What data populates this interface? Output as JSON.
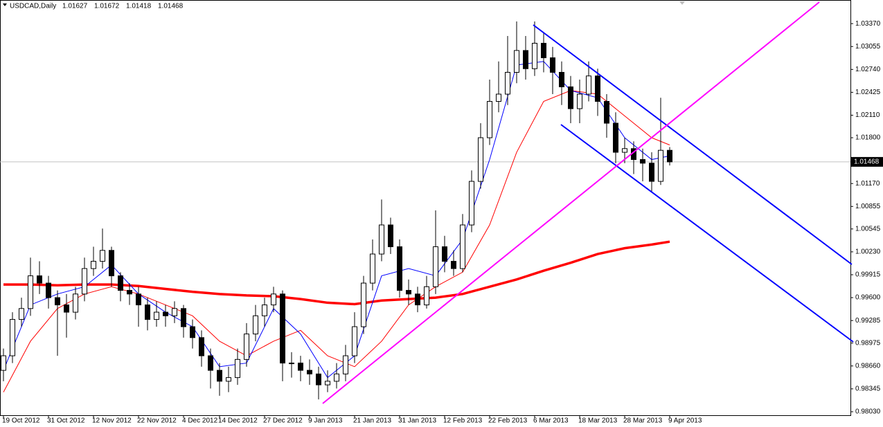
{
  "chart_data": {
    "type": "candlestick",
    "symbol": "USDCAD,Daily",
    "categories": [
      "19 Oct 2012",
      null,
      null,
      null,
      null,
      "31 Oct 2012",
      null,
      null,
      null,
      null,
      "12 Nov 2012",
      null,
      null,
      null,
      null,
      "22 Nov 2012",
      null,
      null,
      null,
      null,
      "4 Dec 2012",
      null,
      null,
      null,
      "14 Dec 2012",
      null,
      null,
      null,
      null,
      "27 Dec 2012",
      null,
      null,
      null,
      null,
      "9 Jan 2013",
      null,
      null,
      null,
      null,
      "21 Jan 2013",
      null,
      null,
      null,
      null,
      "31 Jan 2013",
      null,
      null,
      null,
      null,
      "12 Feb 2013",
      null,
      null,
      null,
      null,
      "22 Feb 2013",
      null,
      null,
      null,
      null,
      "6 Mar 2013",
      null,
      null,
      null,
      null,
      "18 Mar 2013",
      null,
      null,
      null,
      null,
      "28 Mar 2013",
      null,
      null,
      null,
      null,
      "9 Apr 2013"
    ],
    "candles": {
      "up_color": "#ffffff",
      "down_color": "#000000",
      "edge_color": "#000000",
      "open": [
        0.986,
        0.988,
        0.993,
        0.9945,
        0.999,
        0.998,
        0.996,
        0.995,
        0.994,
        0.9965,
        1.0,
        1.001,
        1.0025,
        0.999,
        0.997,
        0.9965,
        0.995,
        0.993,
        0.994,
        0.9935,
        0.9945,
        0.992,
        0.9905,
        0.988,
        0.986,
        0.9845,
        0.985,
        0.9875,
        0.991,
        0.9935,
        0.995,
        0.9965,
        0.987,
        0.987,
        0.986,
        0.9855,
        0.984,
        0.9845,
        0.9855,
        0.988,
        0.992,
        0.998,
        1.002,
        1.006,
        1.003,
        0.997,
        0.9965,
        0.995,
        0.9975,
        1.003,
        1.001,
        1.0,
        1.006,
        1.012,
        1.018,
        1.023,
        1.024,
        1.027,
        1.03,
        1.0275,
        1.031,
        1.029,
        1.027,
        1.025,
        1.022,
        1.024,
        1.0265,
        1.023,
        1.02,
        1.016,
        1.0165,
        1.015,
        1.0145,
        1.012,
        1.01627
      ],
      "high": [
        0.989,
        0.994,
        0.996,
        1.0015,
        1.001,
        0.999,
        0.997,
        0.9965,
        0.9975,
        1.0015,
        1.003,
        1.0055,
        1.003,
        0.9995,
        0.998,
        0.9975,
        0.996,
        0.9955,
        0.995,
        0.9955,
        0.995,
        0.993,
        0.9915,
        0.989,
        0.987,
        0.9865,
        0.989,
        0.9925,
        0.995,
        0.996,
        0.9975,
        0.997,
        0.9885,
        0.988,
        0.9875,
        0.9865,
        0.986,
        0.987,
        0.9895,
        0.994,
        0.999,
        1.004,
        1.0095,
        1.007,
        1.004,
        0.9985,
        0.9975,
        0.999,
        1.008,
        1.0045,
        1.0025,
        1.0075,
        1.0135,
        1.02,
        1.026,
        1.0285,
        1.032,
        1.034,
        1.032,
        1.034,
        1.0325,
        1.0305,
        1.0285,
        1.0265,
        1.026,
        1.0285,
        1.0275,
        1.024,
        1.0215,
        1.018,
        1.0175,
        1.0165,
        1.016,
        1.0235,
        1.01672
      ],
      "low": [
        0.9845,
        0.987,
        0.992,
        0.9935,
        0.9965,
        0.9945,
        0.988,
        0.9905,
        0.993,
        0.9955,
        0.999,
        1.0,
        0.9975,
        0.9955,
        0.995,
        0.992,
        0.9915,
        0.992,
        0.992,
        0.9925,
        0.9905,
        0.989,
        0.9865,
        0.9835,
        0.9825,
        0.983,
        0.984,
        0.9865,
        0.99,
        0.992,
        0.994,
        0.9845,
        0.985,
        0.9845,
        0.984,
        0.982,
        0.983,
        0.9835,
        0.9845,
        0.987,
        0.991,
        0.997,
        1.001,
        1.002,
        0.996,
        0.995,
        0.994,
        0.9945,
        0.9965,
        0.9995,
        0.999,
        0.9995,
        1.005,
        1.011,
        1.017,
        1.0215,
        1.0225,
        1.0255,
        1.026,
        1.0265,
        1.027,
        1.024,
        1.0225,
        1.02,
        1.02,
        1.023,
        1.021,
        1.018,
        1.0145,
        1.0145,
        1.013,
        1.012,
        1.0105,
        1.0115,
        1.01418
      ],
      "close": [
        0.988,
        0.993,
        0.9945,
        0.999,
        0.998,
        0.996,
        0.995,
        0.994,
        0.9965,
        1.0,
        1.001,
        1.0025,
        0.999,
        0.997,
        0.9965,
        0.995,
        0.993,
        0.994,
        0.9935,
        0.9945,
        0.992,
        0.9905,
        0.988,
        0.986,
        0.9845,
        0.985,
        0.9875,
        0.991,
        0.9935,
        0.995,
        0.9965,
        0.987,
        0.987,
        0.986,
        0.9855,
        0.984,
        0.9845,
        0.9855,
        0.988,
        0.992,
        0.998,
        1.002,
        1.006,
        1.003,
        0.997,
        0.9965,
        0.995,
        0.9975,
        1.003,
        1.001,
        1.0,
        1.006,
        1.012,
        1.018,
        1.023,
        1.024,
        1.027,
        1.03,
        1.0275,
        1.031,
        1.029,
        1.027,
        1.025,
        1.022,
        1.024,
        1.0265,
        1.023,
        1.02,
        1.016,
        1.0165,
        1.015,
        1.0145,
        1.012,
        1.01627,
        1.01468
      ]
    },
    "moving_averages": [
      {
        "color": "#ff0000",
        "weight": "bold",
        "x": [
          0,
          3,
          6,
          9,
          12,
          15,
          18,
          21,
          24,
          27,
          30,
          33,
          36,
          39,
          42,
          45,
          48,
          51,
          54,
          57,
          60,
          63,
          66,
          69,
          72,
          74
        ],
        "values": [
          0.9978,
          0.9978,
          0.9977,
          0.9978,
          0.9978,
          0.9976,
          0.9972,
          0.9968,
          0.9965,
          0.9963,
          0.9962,
          0.9958,
          0.9953,
          0.9951,
          0.9956,
          0.9958,
          0.996,
          0.9965,
          0.9975,
          0.9985,
          0.9997,
          1.0008,
          1.002,
          1.0028,
          1.0033,
          1.0037
        ]
      },
      {
        "color": "#ff0000",
        "weight": "thin",
        "x": [
          0,
          3,
          6,
          9,
          12,
          15,
          18,
          21,
          24,
          27,
          30,
          33,
          36,
          39,
          42,
          45,
          48,
          51,
          54,
          57,
          60,
          63,
          66,
          69,
          72,
          74
        ],
        "values": [
          0.983,
          0.99,
          0.9945,
          0.9965,
          0.9975,
          0.9965,
          0.995,
          0.9935,
          0.99,
          0.988,
          0.99,
          0.9915,
          0.988,
          0.9865,
          0.99,
          0.995,
          0.9975,
          0.9995,
          1.006,
          1.016,
          1.023,
          1.0245,
          1.024,
          1.021,
          1.018,
          1.017
        ]
      },
      {
        "color": "#0000ff",
        "weight": "thin",
        "x": [
          0,
          3,
          6,
          9,
          12,
          15,
          18,
          21,
          24,
          27,
          30,
          33,
          36,
          39,
          42,
          45,
          48,
          51,
          54,
          57,
          60,
          63,
          66,
          69,
          72,
          74
        ],
        "values": [
          0.986,
          0.995,
          0.9965,
          0.9975,
          1.0005,
          0.9965,
          0.994,
          0.992,
          0.9865,
          0.987,
          0.9945,
          0.991,
          0.985,
          0.988,
          0.999,
          1.0,
          0.999,
          1.004,
          1.015,
          1.028,
          1.0285,
          1.0245,
          1.0235,
          1.018,
          1.015,
          1.0155
        ]
      }
    ],
    "current_price": 1.01468,
    "ylim": [
      0.97982,
      1.03695
    ],
    "yticks": [
      {
        "value": 1.0337,
        "label": "1.03370"
      },
      1.03055,
      {
        "value": 1.0274,
        "label": "1.02740"
      },
      1.02425,
      {
        "value": 1.0211,
        "label": "1.02110"
      },
      {
        "value": 1.018,
        "label": "1.01800"
      },
      {
        "value": 1.0117,
        "label": "1.01170"
      },
      1.00855,
      1.00545,
      {
        "value": 1.0023,
        "label": "1.00230"
      },
      0.99915,
      {
        "value": 0.996,
        "label": "0.99600"
      },
      0.99285,
      0.98975,
      {
        "value": 0.9866,
        "label": "0.98660"
      },
      0.98345,
      {
        "value": 0.9803,
        "label": "0.98030"
      }
    ]
  }
}
